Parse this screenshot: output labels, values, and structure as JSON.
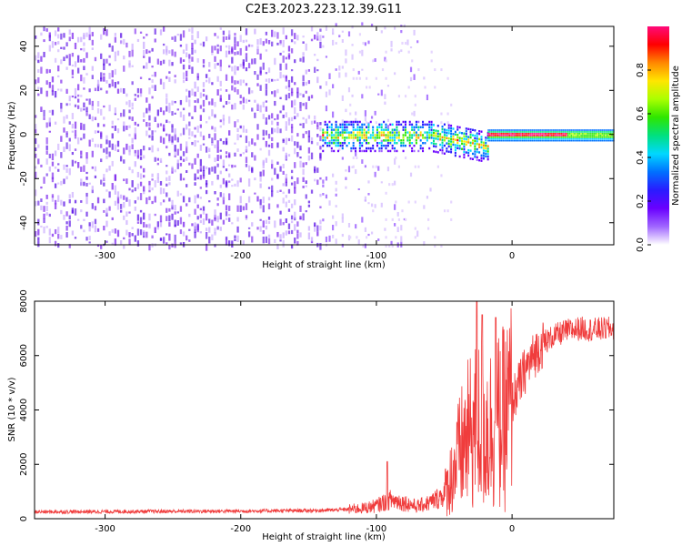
{
  "figure_title": "C2E3.2023.223.12.39.G11",
  "colors": {
    "snr_line": "#f03c3c",
    "spectrum_point": "#7a22ee",
    "colormap": [
      "#ffffff",
      "#a066ff",
      "#6a00ff",
      "#2a1bff",
      "#0070ff",
      "#00d8ff",
      "#00e080",
      "#2ee600",
      "#aaff00",
      "#ffe600",
      "#ff8800",
      "#ff0000",
      "#ff0a7a"
    ]
  },
  "chart_data": [
    {
      "type": "heatmap",
      "title": "",
      "xlabel": "Height of straight line (km)",
      "ylabel": "Frequency (Hz)",
      "xlim": [
        -352,
        75
      ],
      "ylim": [
        -50,
        49
      ],
      "x_ticks": [
        -300,
        -200,
        -100,
        0
      ],
      "y_ticks": [
        -40,
        -20,
        0,
        20,
        40
      ],
      "grid": false,
      "colorbar": {
        "label": "Normalized spectral amplitude",
        "range": [
          0,
          1
        ],
        "ticks": [
          0.0,
          0.2,
          0.4,
          0.6,
          0.8
        ]
      },
      "features": [
        {
          "feature": "broadband noise",
          "x_range": [
            -352,
            -140
          ],
          "y_range": [
            -50,
            49
          ],
          "amplitude": 0.15
        },
        {
          "feature": "sparse noise",
          "x_range": [
            -140,
            -60
          ],
          "y_range": [
            -50,
            49
          ],
          "amplitude": 0.08
        },
        {
          "feature": "carrier band",
          "x_range": [
            -140,
            -18
          ],
          "center_hz": 0,
          "width_hz": 10,
          "amplitude": 0.4
        },
        {
          "feature": "carrier line",
          "x_range": [
            -18,
            75
          ],
          "center_hz": 0,
          "width_hz": 3,
          "amplitude": 0.85
        }
      ]
    },
    {
      "type": "line",
      "title": "",
      "xlabel": "Height of straight line (km)",
      "ylabel": "SNR (10 * v/v)",
      "xlim": [
        -352,
        75
      ],
      "ylim": [
        0,
        8000
      ],
      "x_ticks": [
        -300,
        -200,
        -100,
        0
      ],
      "y_ticks": [
        0,
        2000,
        4000,
        6000,
        8000
      ],
      "grid": false,
      "series": [
        {
          "x": [
            -352,
            -300,
            -250,
            -200,
            -150,
            -130,
            -110,
            -100,
            -90,
            -80,
            -70,
            -60,
            -50,
            -45,
            -40,
            -35,
            -30,
            -25,
            -20,
            -15,
            -10,
            -5,
            0,
            10,
            20,
            30,
            40,
            50,
            60,
            75
          ],
          "y": [
            250,
            260,
            270,
            280,
            300,
            320,
            380,
            480,
            700,
            600,
            450,
            600,
            900,
            1500,
            2200,
            2800,
            3200,
            3500,
            3300,
            3400,
            3500,
            3700,
            4300,
            5500,
            6300,
            6700,
            6900,
            7000,
            6950,
            7000
          ],
          "peaks": [
            {
              "x": -92,
              "y": 2100
            },
            {
              "x": -26,
              "y": 8000
            },
            {
              "x": -22,
              "y": 7500
            },
            {
              "x": -12,
              "y": 7400
            }
          ]
        }
      ]
    }
  ]
}
